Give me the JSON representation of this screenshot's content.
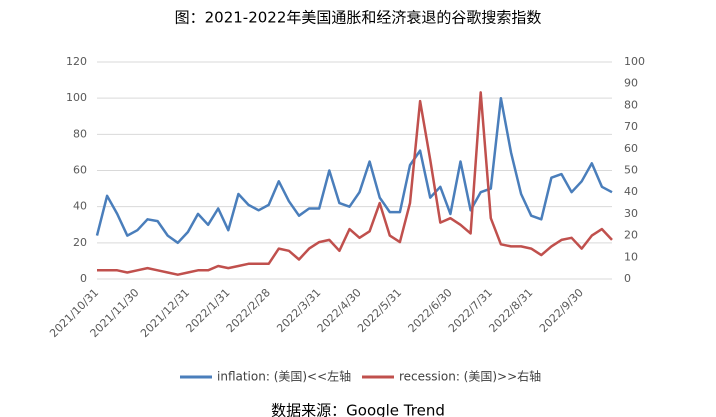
{
  "chart_data": {
    "type": "line",
    "title": "图：2021-2022年美国通胀和经济衰退的谷歌搜索指数",
    "source": "数据来源：Google Trend",
    "categories": [
      "2021/10/31",
      null,
      null,
      null,
      "2021/11/30",
      null,
      null,
      null,
      null,
      "2021/12/31",
      null,
      null,
      null,
      "2022/1/31",
      null,
      null,
      null,
      "2022/2/28",
      null,
      null,
      null,
      null,
      "2022/3/31",
      null,
      null,
      null,
      "2022/4/30",
      null,
      null,
      null,
      "2022/5/31",
      null,
      null,
      null,
      null,
      "2022/6/30",
      null,
      null,
      null,
      "2022/7/31",
      null,
      null,
      null,
      "2022/8/31",
      null,
      null,
      null,
      null,
      "2022/9/30",
      null,
      null,
      null
    ],
    "series": [
      {
        "name": "inflation: (美国)<<左轴",
        "color": "#4a7ebb",
        "axis": "y",
        "values": [
          24,
          46,
          36,
          24,
          27,
          33,
          32,
          24,
          20,
          26,
          36,
          30,
          39,
          27,
          47,
          41,
          38,
          41,
          54,
          43,
          35,
          39,
          39,
          60,
          42,
          40,
          48,
          65,
          45,
          37,
          37,
          63,
          71,
          45,
          51,
          36,
          65,
          38,
          48,
          50,
          100,
          70,
          47,
          35,
          33,
          56,
          58,
          48,
          54,
          64,
          51,
          48
        ]
      },
      {
        "name": "recession: (美国)>>右轴",
        "color": "#c0504d",
        "axis": "y2",
        "values": [
          4,
          4,
          4,
          3,
          4,
          5,
          4,
          3,
          2,
          3,
          4,
          4,
          6,
          5,
          6,
          7,
          7,
          7,
          14,
          13,
          9,
          14,
          17,
          18,
          13,
          23,
          19,
          22,
          35,
          20,
          17,
          35,
          82,
          55,
          26,
          28,
          25,
          21,
          86,
          28,
          16,
          15,
          15,
          14,
          11,
          15,
          18,
          19,
          14,
          20,
          23,
          18
        ]
      }
    ],
    "ylim": [
      0,
      120
    ],
    "yticks": [
      0,
      20,
      40,
      60,
      80,
      100,
      120
    ],
    "y2lim": [
      0,
      100
    ],
    "y2ticks": [
      0,
      10,
      20,
      30,
      40,
      50,
      60,
      70,
      80,
      90,
      100
    ],
    "grid": true,
    "legend": "bottom"
  }
}
